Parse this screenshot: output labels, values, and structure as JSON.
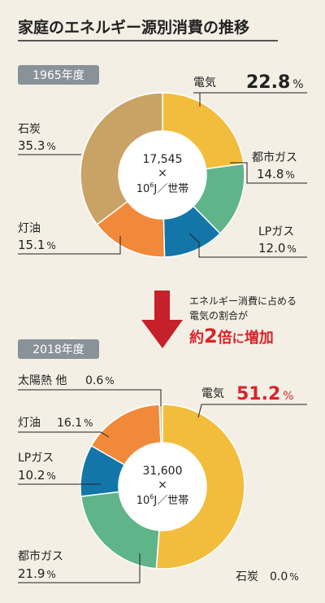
{
  "title": "家庭のエネルギー源別消費の推移",
  "colors": {
    "electricity": "#f2bd3c",
    "city_gas": "#5fb48a",
    "lp_gas": "#1476a8",
    "kerosene": "#f0893a",
    "coal": "#c9a266",
    "solar": "#d8c69a",
    "highlight": "#d8232a",
    "badge": "#8a9299"
  },
  "arrow_text": {
    "line1": "エネルギー消費に占める",
    "line2": "電気の割合が",
    "line3_a": "約",
    "line3_b": "2",
    "line3_c": "倍",
    "line3_d": "に",
    "line3_e": "増加"
  },
  "chart_data": [
    {
      "type": "pie",
      "year_label": "1965年度",
      "center": {
        "value": "17,545",
        "times": "×",
        "unit_base": "10",
        "unit_exp": "6",
        "unit_rest": "J／世帯"
      },
      "slices": [
        {
          "name": "電気",
          "value": 22.8,
          "label": "22.8",
          "pct": "%"
        },
        {
          "name": "都市ガス",
          "value": 14.8,
          "label": "14.8",
          "pct": "%"
        },
        {
          "name": "LPガス",
          "value": 12.0,
          "label": "12.0",
          "pct": "%"
        },
        {
          "name": "灯油",
          "value": 15.1,
          "label": "15.1",
          "pct": "%"
        },
        {
          "name": "石炭",
          "value": 35.3,
          "label": "35.3",
          "pct": "%"
        }
      ]
    },
    {
      "type": "pie",
      "year_label": "2018年度",
      "center": {
        "value": "31,600",
        "times": "×",
        "unit_base": "10",
        "unit_exp": "6",
        "unit_rest": "J／世帯"
      },
      "slices": [
        {
          "name": "電気",
          "value": 51.2,
          "label": "51.2",
          "pct": "%"
        },
        {
          "name": "石炭",
          "value": 0.0,
          "label": "0.0",
          "pct": "%"
        },
        {
          "name": "都市ガス",
          "value": 21.9,
          "label": "21.9",
          "pct": "%"
        },
        {
          "name": "LPガス",
          "value": 10.2,
          "label": "10.2",
          "pct": "%"
        },
        {
          "name": "灯油",
          "value": 16.1,
          "label": "16.1",
          "pct": "%"
        },
        {
          "name": "太陽熱 他",
          "value": 0.6,
          "label": "0.6",
          "pct": "%"
        }
      ]
    }
  ]
}
